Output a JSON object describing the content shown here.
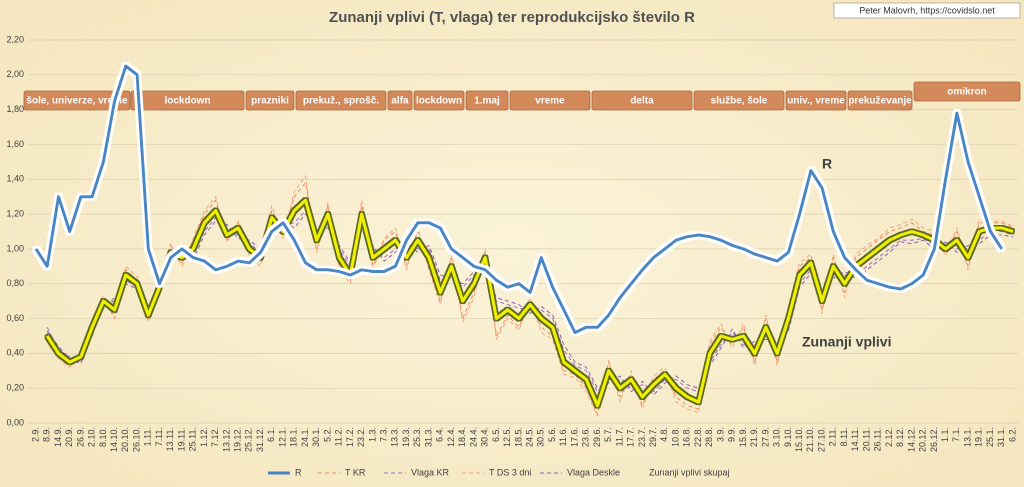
{
  "chart_data": {
    "type": "line",
    "title": "Zunanji vplivi (T, vlaga) ter reprodukcijsko število R",
    "source": "Peter Malovrh, https://covidslo.net",
    "phase_labels": [
      "šole, univerze, vreme",
      "lockdown",
      "prazniki",
      "prekuž., sprošč.",
      "alfa",
      "lockdown",
      "1.maj",
      "vreme",
      "delta",
      "službe, šole",
      "univ., vreme",
      "prekuževanje",
      "omikron"
    ],
    "line_labels": [
      "R",
      "Zunanji vplivi"
    ],
    "categories": [
      "2.9.",
      "8.9.",
      "14.9.",
      "20.9.",
      "26.9.",
      "2.10.",
      "8.10.",
      "14.10.",
      "20.10.",
      "26.10.",
      "1.11.",
      "7.11.",
      "13.11.",
      "19.11.",
      "25.11.",
      "1.12.",
      "7.12.",
      "13.12.",
      "19.12.",
      "25.12.",
      "31.12.",
      "6.1.",
      "12.1.",
      "18.1.",
      "24.1.",
      "30.1.",
      "5.2.",
      "11.2.",
      "17.2.",
      "23.2.",
      "1.3.",
      "7.3.",
      "13.3.",
      "19.3.",
      "25.3.",
      "31.3.",
      "6.4.",
      "12.4.",
      "18.4.",
      "24.4.",
      "30.4.",
      "6.5.",
      "12.5.",
      "18.5.",
      "24.5.",
      "30.5.",
      "5.6.",
      "11.6.",
      "17.6.",
      "23.6.",
      "29.6.",
      "5.7.",
      "11.7.",
      "17.7.",
      "23.7.",
      "29.7.",
      "4.8.",
      "10.8.",
      "16.8.",
      "22.8.",
      "28.8.",
      "3.9.",
      "9.9.",
      "15.9.",
      "21.9.",
      "27.9.",
      "3.10.",
      "9.10.",
      "15.10.",
      "21.10.",
      "27.10.",
      "2.11.",
      "8.11.",
      "14.11.",
      "20.11.",
      "26.11.",
      "2.12.",
      "8.12.",
      "14.12.",
      "20.12.",
      "26.12.",
      "1.1.",
      "7.1.",
      "13.1.",
      "19.1.",
      "25.1.",
      "31.1.",
      "6.2."
    ],
    "ylim": [
      0,
      2.2
    ],
    "yticks": [
      {
        "value": 0,
        "label": "0,00"
      },
      {
        "value": 0.2,
        "label": "0,20"
      },
      {
        "value": 0.4,
        "label": "0,40"
      },
      {
        "value": 0.6,
        "label": "0,60"
      },
      {
        "value": 0.8,
        "label": "0,80"
      },
      {
        "value": 1,
        "label": "1,00"
      },
      {
        "value": 1.2,
        "label": "1,20"
      },
      {
        "value": 1.4,
        "label": "1,40"
      },
      {
        "value": 1.6,
        "label": "1,60"
      },
      {
        "value": 1.8,
        "label": "1,80"
      },
      {
        "value": 2,
        "label": "2,00"
      },
      {
        "value": 2.2,
        "label": "2,20"
      }
    ],
    "grid": true,
    "legend": "bottom",
    "series": [
      {
        "name": "T KR",
        "color": "#f08a5d",
        "style": "dashed",
        "values": [
          null,
          0.52,
          0.38,
          0.33,
          0.4,
          0.58,
          0.72,
          0.6,
          0.88,
          0.82,
          0.6,
          0.8,
          1.02,
          0.92,
          1.05,
          1.2,
          1.28,
          1.05,
          1.15,
          0.98,
          0.92,
          1.22,
          1.08,
          1.3,
          1.38,
          1.0,
          1.25,
          0.9,
          0.82,
          1.25,
          0.9,
          1.05,
          1.1,
          0.9,
          1.1,
          0.9,
          0.7,
          0.95,
          0.6,
          0.75,
          0.98,
          0.5,
          0.62,
          0.55,
          0.7,
          0.55,
          0.5,
          0.3,
          0.28,
          0.2,
          0.05,
          0.35,
          0.15,
          0.28,
          0.1,
          0.25,
          0.3,
          0.15,
          0.1,
          0.08,
          0.45,
          0.55,
          0.45,
          0.55,
          0.35,
          0.6,
          0.35,
          0.65,
          0.9,
          0.95,
          0.65,
          0.95,
          0.75,
          0.95,
          1.0,
          1.05,
          1.1,
          1.12,
          1.15,
          1.1,
          1.08,
          0.98,
          1.1,
          0.9,
          1.15,
          1.15,
          1.15,
          1.12
        ]
      },
      {
        "name": "Vlaga KR",
        "color": "#9a6cc8",
        "style": "dashed",
        "values": [
          null,
          0.55,
          0.42,
          0.38,
          0.36,
          0.5,
          0.68,
          0.7,
          0.82,
          0.78,
          0.65,
          0.75,
          0.95,
          0.98,
          0.96,
          1.1,
          1.18,
          1.12,
          1.08,
          1.03,
          0.98,
          1.12,
          1.14,
          1.15,
          1.22,
          1.1,
          1.15,
          1.0,
          0.9,
          1.15,
          1.0,
          0.95,
          1.0,
          1.02,
          1.0,
          1.0,
          0.82,
          0.85,
          0.78,
          0.85,
          0.9,
          0.7,
          0.68,
          0.66,
          0.65,
          0.65,
          0.6,
          0.42,
          0.33,
          0.3,
          0.18,
          0.25,
          0.25,
          0.2,
          0.22,
          0.18,
          0.25,
          0.25,
          0.2,
          0.18,
          0.35,
          0.45,
          0.52,
          0.45,
          0.45,
          0.5,
          0.45,
          0.55,
          0.8,
          0.88,
          0.75,
          0.85,
          0.85,
          0.85,
          0.9,
          0.95,
          1.0,
          1.05,
          1.05,
          1.06,
          1.02,
          1.02,
          1.0,
          1.0,
          1.05,
          1.1,
          1.1,
          1.08
        ]
      },
      {
        "name": "T DS 3 dni",
        "color": "#f4a47a",
        "style": "dashed",
        "values": [
          null,
          0.48,
          0.37,
          0.32,
          0.39,
          0.56,
          0.73,
          0.62,
          0.9,
          0.84,
          0.58,
          0.82,
          1.03,
          0.9,
          1.06,
          1.22,
          1.3,
          1.04,
          1.16,
          0.96,
          0.9,
          1.25,
          1.06,
          1.33,
          1.42,
          0.98,
          1.27,
          0.88,
          0.8,
          1.28,
          0.88,
          1.06,
          1.12,
          0.88,
          1.12,
          0.88,
          0.68,
          0.97,
          0.58,
          0.72,
          1.0,
          0.48,
          0.6,
          0.53,
          0.72,
          0.52,
          0.48,
          0.28,
          0.26,
          0.18,
          0.04,
          0.36,
          0.12,
          0.3,
          0.08,
          0.27,
          0.32,
          0.12,
          0.08,
          0.06,
          0.47,
          0.57,
          0.43,
          0.57,
          0.33,
          0.62,
          0.33,
          0.67,
          0.92,
          0.97,
          0.63,
          0.97,
          0.72,
          0.97,
          1.02,
          1.06,
          1.12,
          1.14,
          1.17,
          1.12,
          1.1,
          0.96,
          1.12,
          0.88,
          1.17,
          1.16,
          1.16,
          1.13
        ]
      },
      {
        "name": "Vlaga Deskle",
        "color": "#8e5fb8",
        "style": "dashed",
        "values": [
          null,
          0.53,
          0.44,
          0.37,
          0.34,
          0.52,
          0.66,
          0.72,
          0.8,
          0.77,
          0.66,
          0.74,
          0.93,
          1.0,
          0.94,
          1.08,
          1.16,
          1.14,
          1.06,
          1.05,
          1.0,
          1.1,
          1.16,
          1.12,
          1.2,
          1.12,
          1.12,
          1.02,
          0.92,
          1.12,
          1.02,
          0.93,
          0.98,
          1.04,
          0.98,
          1.02,
          0.85,
          0.83,
          0.8,
          0.87,
          0.88,
          0.72,
          0.7,
          0.68,
          0.63,
          0.67,
          0.62,
          0.45,
          0.35,
          0.32,
          0.2,
          0.23,
          0.27,
          0.18,
          0.24,
          0.16,
          0.23,
          0.27,
          0.22,
          0.2,
          0.33,
          0.43,
          0.54,
          0.43,
          0.47,
          0.48,
          0.47,
          0.53,
          0.78,
          0.86,
          0.77,
          0.83,
          0.87,
          0.83,
          0.88,
          0.93,
          0.98,
          1.04,
          1.03,
          1.05,
          1.0,
          1.04,
          0.98,
          1.02,
          1.03,
          1.08,
          1.08,
          1.07
        ]
      },
      {
        "name": "Zunanji vplivi skupaj",
        "color": "#f0f000",
        "style": "outlined",
        "values": [
          null,
          0.5,
          0.4,
          0.35,
          0.38,
          0.55,
          0.7,
          0.65,
          0.85,
          0.8,
          0.62,
          0.78,
          0.98,
          0.95,
          1.0,
          1.15,
          1.22,
          1.08,
          1.12,
          1.0,
          0.95,
          1.18,
          1.1,
          1.22,
          1.28,
          1.05,
          1.2,
          0.95,
          0.85,
          1.2,
          0.95,
          1.0,
          1.05,
          0.95,
          1.05,
          0.95,
          0.75,
          0.9,
          0.7,
          0.8,
          0.95,
          0.6,
          0.65,
          0.6,
          0.68,
          0.6,
          0.55,
          0.35,
          0.3,
          0.25,
          0.1,
          0.3,
          0.2,
          0.25,
          0.15,
          0.22,
          0.28,
          0.2,
          0.15,
          0.12,
          0.4,
          0.5,
          0.48,
          0.5,
          0.4,
          0.55,
          0.4,
          0.6,
          0.85,
          0.92,
          0.7,
          0.9,
          0.8,
          0.9,
          0.95,
          1.0,
          1.05,
          1.08,
          1.1,
          1.08,
          1.05,
          1.0,
          1.05,
          0.95,
          1.1,
          1.12,
          1.12,
          1.1
        ]
      },
      {
        "name": "R",
        "color": "#4a86c5",
        "style": "glow",
        "values": [
          1.0,
          0.9,
          1.3,
          1.1,
          1.3,
          1.3,
          1.5,
          1.85,
          2.05,
          2.0,
          1.0,
          0.8,
          0.95,
          1.0,
          0.95,
          0.93,
          0.88,
          0.9,
          0.93,
          0.92,
          0.98,
          1.1,
          1.15,
          1.05,
          0.92,
          0.88,
          0.88,
          0.87,
          0.85,
          0.88,
          0.87,
          0.87,
          0.9,
          1.05,
          1.15,
          1.15,
          1.12,
          1.0,
          0.95,
          0.9,
          0.88,
          0.82,
          0.78,
          0.8,
          0.75,
          0.95,
          0.78,
          0.65,
          0.52,
          0.55,
          0.55,
          0.62,
          0.72,
          0.8,
          0.88,
          0.95,
          1.0,
          1.05,
          1.07,
          1.08,
          1.07,
          1.05,
          1.02,
          1.0,
          0.97,
          0.95,
          0.93,
          0.98,
          1.2,
          1.45,
          1.35,
          1.1,
          0.95,
          0.88,
          0.82,
          0.8,
          0.78,
          0.77,
          0.8,
          0.85,
          1.0,
          1.4,
          1.78,
          1.5,
          1.3,
          1.1,
          1.0,
          null
        ]
      }
    ]
  }
}
